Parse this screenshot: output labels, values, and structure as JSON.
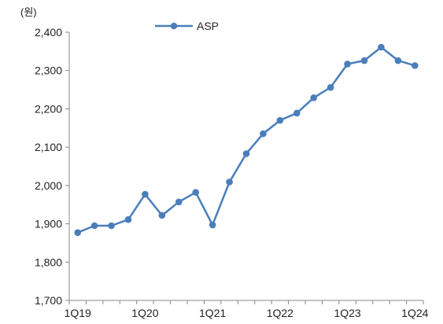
{
  "chart_data": {
    "type": "line",
    "unit_label": "(원)",
    "legend_position": "top",
    "grid": false,
    "ylim": [
      1700,
      2400
    ],
    "yticks": [
      1700,
      1800,
      1900,
      2000,
      2100,
      2200,
      2300,
      2400
    ],
    "ytick_labels": [
      "1,700",
      "1,800",
      "1,900",
      "2,000",
      "2,100",
      "2,200",
      "2,300",
      "2,400"
    ],
    "categories": [
      "1Q19",
      "2Q19",
      "3Q19",
      "4Q19",
      "1Q20",
      "2Q20",
      "3Q20",
      "4Q20",
      "1Q21",
      "2Q21",
      "3Q21",
      "4Q21",
      "1Q22",
      "2Q22",
      "3Q22",
      "4Q22",
      "1Q23",
      "2Q23",
      "3Q23",
      "4Q23",
      "1Q24"
    ],
    "x_tick_labels": [
      "1Q19",
      "1Q20",
      "1Q21",
      "1Q22",
      "1Q23",
      "1Q24"
    ],
    "x_tick_indices": [
      0,
      4,
      8,
      12,
      16,
      20
    ],
    "series": [
      {
        "name": "ASP",
        "color": "#4a7ebb",
        "values": [
          1877,
          1895,
          1895,
          1911,
          1977,
          1922,
          1957,
          1982,
          1897,
          2009,
          2083,
          2135,
          2170,
          2189,
          2229,
          2256,
          2317,
          2326,
          2361,
          2326,
          2313
        ]
      }
    ]
  }
}
